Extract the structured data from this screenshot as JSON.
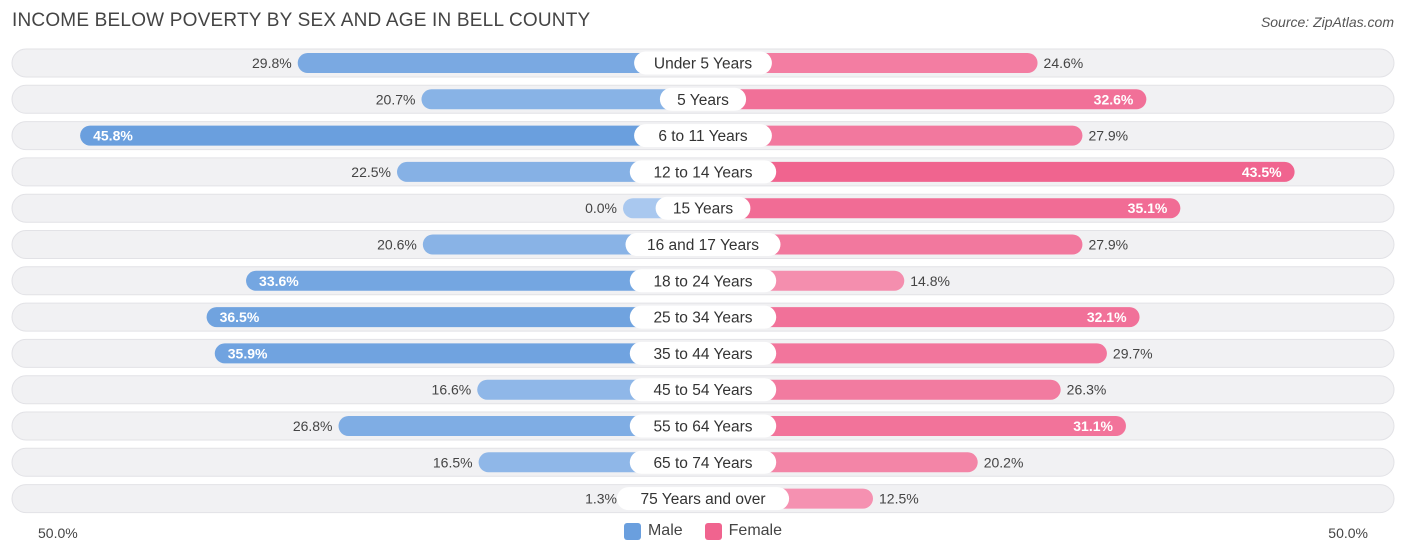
{
  "header": {
    "title": "INCOME BELOW POVERTY BY SEX AND AGE IN BELL COUNTY",
    "source": "Source: ZipAtlas.com"
  },
  "colors": {
    "male": "#6a9fde",
    "male_light": "#a9c8ef",
    "female": "#f0648f",
    "female_light": "#f7a6c0",
    "track": "#f1f1f3"
  },
  "legend": {
    "male": "Male",
    "female": "Female"
  },
  "axis": {
    "left": "50.0%",
    "right": "50.0%"
  },
  "chart_data": {
    "type": "bar",
    "orientation": "horizontal-diverging",
    "xlim": [
      0,
      50
    ],
    "categories": [
      "Under 5 Years",
      "5 Years",
      "6 to 11 Years",
      "12 to 14 Years",
      "15 Years",
      "16 and 17 Years",
      "18 to 24 Years",
      "25 to 34 Years",
      "35 to 44 Years",
      "45 to 54 Years",
      "55 to 64 Years",
      "65 to 74 Years",
      "75 Years and over"
    ],
    "series": [
      {
        "name": "Male",
        "values": [
          29.8,
          20.7,
          45.8,
          22.5,
          0.0,
          20.6,
          33.6,
          36.5,
          35.9,
          16.6,
          26.8,
          16.5,
          1.3
        ],
        "labels": [
          "29.8%",
          "20.7%",
          "45.8%",
          "22.5%",
          "0.0%",
          "20.6%",
          "33.6%",
          "36.5%",
          "35.9%",
          "16.6%",
          "26.8%",
          "16.5%",
          "1.3%"
        ]
      },
      {
        "name": "Female",
        "values": [
          24.6,
          32.6,
          27.9,
          43.5,
          35.1,
          27.9,
          14.8,
          32.1,
          29.7,
          26.3,
          31.1,
          20.2,
          12.5
        ],
        "labels": [
          "24.6%",
          "32.6%",
          "27.9%",
          "43.5%",
          "35.1%",
          "27.9%",
          "14.8%",
          "32.1%",
          "29.7%",
          "26.3%",
          "31.1%",
          "20.2%",
          "12.5%"
        ]
      }
    ],
    "legend_position": "bottom-center"
  }
}
